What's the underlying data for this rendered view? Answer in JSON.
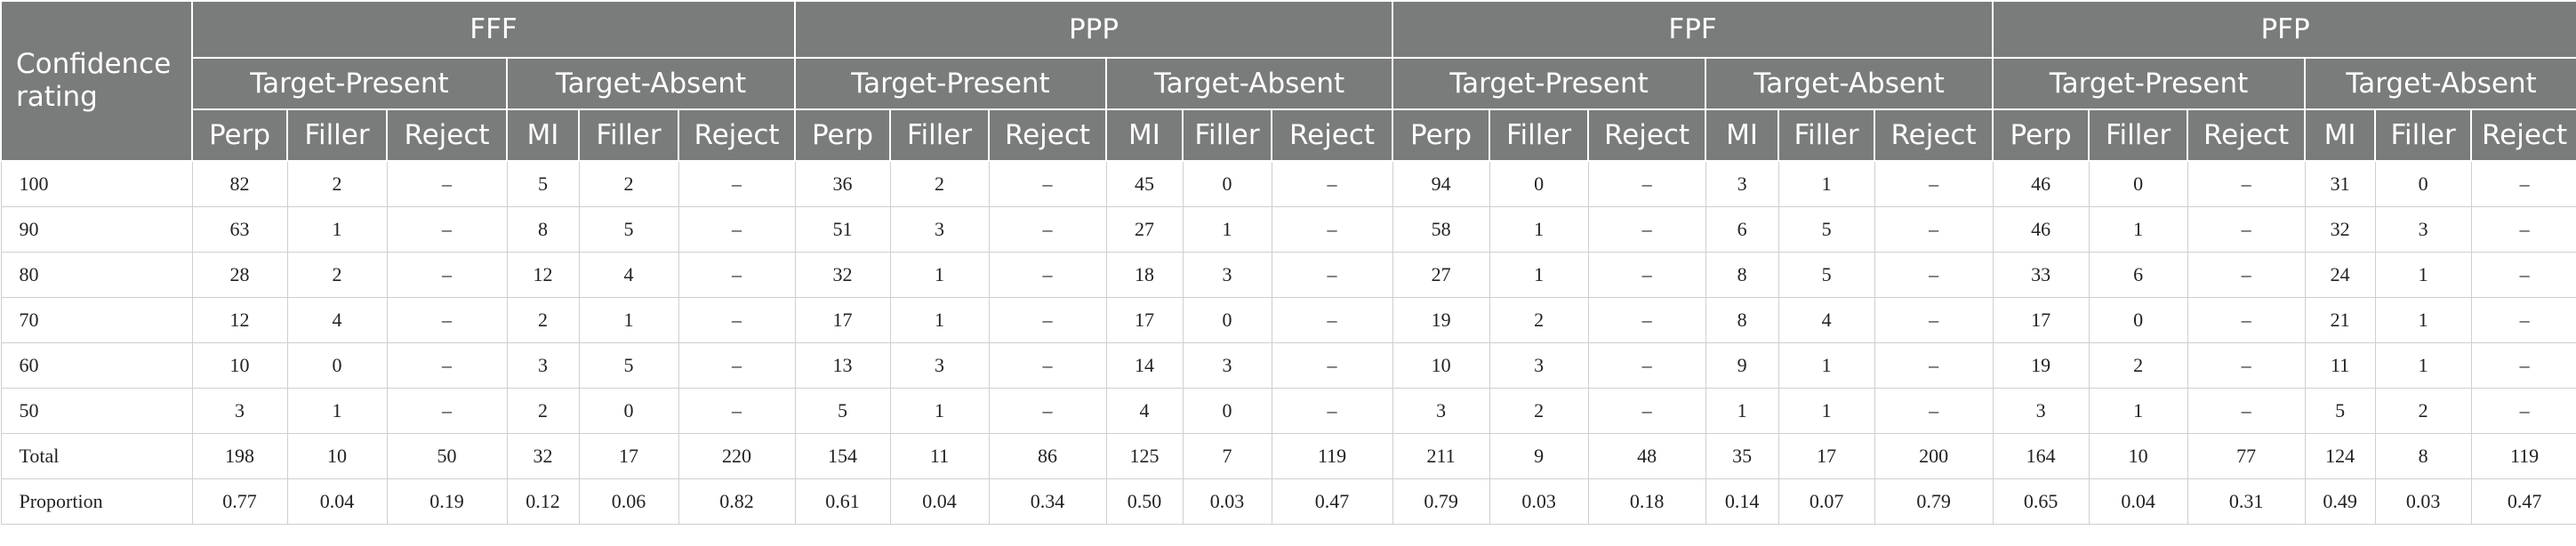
{
  "header": {
    "corner": "Confidence rating",
    "groups": [
      "FFF",
      "PPP",
      "FPF",
      "PFP"
    ],
    "subgroups": [
      "Target-Present",
      "Target-Absent"
    ],
    "present_cols": [
      "Perp",
      "Filler",
      "Reject"
    ],
    "absent_cols": [
      "MI",
      "Filler",
      "Reject"
    ]
  },
  "rows": [
    {
      "label": "100",
      "cells": [
        "82",
        "2",
        "–",
        "5",
        "2",
        "–",
        "36",
        "2",
        "–",
        "45",
        "0",
        "–",
        "94",
        "0",
        "–",
        "3",
        "1",
        "–",
        "46",
        "0",
        "–",
        "31",
        "0",
        "–"
      ]
    },
    {
      "label": "90",
      "cells": [
        "63",
        "1",
        "–",
        "8",
        "5",
        "–",
        "51",
        "3",
        "–",
        "27",
        "1",
        "–",
        "58",
        "1",
        "–",
        "6",
        "5",
        "–",
        "46",
        "1",
        "–",
        "32",
        "3",
        "–"
      ]
    },
    {
      "label": "80",
      "cells": [
        "28",
        "2",
        "–",
        "12",
        "4",
        "–",
        "32",
        "1",
        "–",
        "18",
        "3",
        "–",
        "27",
        "1",
        "–",
        "8",
        "5",
        "–",
        "33",
        "6",
        "–",
        "24",
        "1",
        "–"
      ]
    },
    {
      "label": "70",
      "cells": [
        "12",
        "4",
        "–",
        "2",
        "1",
        "–",
        "17",
        "1",
        "–",
        "17",
        "0",
        "–",
        "19",
        "2",
        "–",
        "8",
        "4",
        "–",
        "17",
        "0",
        "–",
        "21",
        "1",
        "–"
      ]
    },
    {
      "label": "60",
      "cells": [
        "10",
        "0",
        "–",
        "3",
        "5",
        "–",
        "13",
        "3",
        "–",
        "14",
        "3",
        "–",
        "10",
        "3",
        "–",
        "9",
        "1",
        "–",
        "19",
        "2",
        "–",
        "11",
        "1",
        "–"
      ]
    },
    {
      "label": "50",
      "cells": [
        "3",
        "1",
        "–",
        "2",
        "0",
        "–",
        "5",
        "1",
        "–",
        "4",
        "0",
        "–",
        "3",
        "2",
        "–",
        "1",
        "1",
        "–",
        "3",
        "1",
        "–",
        "5",
        "2",
        "–"
      ]
    },
    {
      "label": "Total",
      "cells": [
        "198",
        "10",
        "50",
        "32",
        "17",
        "220",
        "154",
        "11",
        "86",
        "125",
        "7",
        "119",
        "211",
        "9",
        "48",
        "35",
        "17",
        "200",
        "164",
        "10",
        "77",
        "124",
        "8",
        "119"
      ]
    },
    {
      "label": "Proportion",
      "cells": [
        "0.77",
        "0.04",
        "0.19",
        "0.12",
        "0.06",
        "0.82",
        "0.61",
        "0.04",
        "0.34",
        "0.50",
        "0.03",
        "0.47",
        "0.79",
        "0.03",
        "0.18",
        "0.14",
        "0.07",
        "0.79",
        "0.65",
        "0.04",
        "0.31",
        "0.49",
        "0.03",
        "0.47"
      ]
    }
  ],
  "colors": {
    "header_bg": "#7a7c7b",
    "header_text": "#ffffff",
    "grid": "#cfcfcf"
  }
}
